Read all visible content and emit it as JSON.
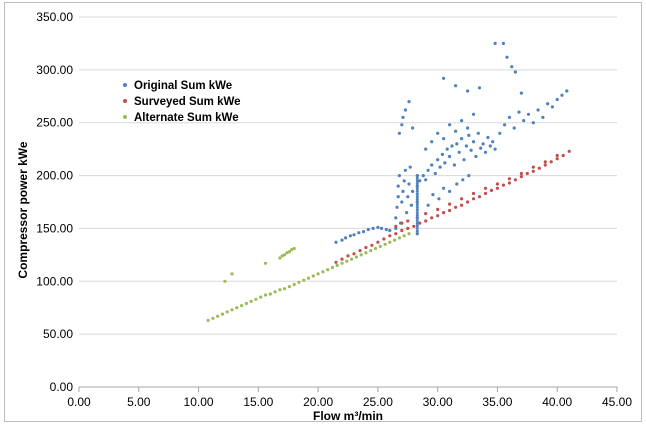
{
  "chart_data": {
    "type": "scatter",
    "title": "",
    "xlabel": "Flow m³/min",
    "ylabel": "Compressor power kWe",
    "xlim": [
      0,
      45
    ],
    "ylim": [
      0,
      350
    ],
    "x_ticks": [
      "0.00",
      "5.00",
      "10.00",
      "15.00",
      "20.00",
      "25.00",
      "30.00",
      "35.00",
      "40.00",
      "45.00"
    ],
    "y_ticks": [
      "0.00",
      "50.00",
      "100.00",
      "150.00",
      "200.00",
      "250.00",
      "300.00",
      "350.00"
    ],
    "grid": "horizontal",
    "legend_position": "top-left",
    "series": [
      {
        "name": "Original Sum kWe",
        "color": "#4f81bd",
        "points": [
          [
            21.5,
            137
          ],
          [
            22.0,
            139
          ],
          [
            22.3,
            141
          ],
          [
            22.7,
            143
          ],
          [
            23.0,
            144
          ],
          [
            23.4,
            146
          ],
          [
            23.8,
            147
          ],
          [
            24.2,
            149
          ],
          [
            24.6,
            150
          ],
          [
            25.0,
            151
          ],
          [
            25.3,
            150
          ],
          [
            25.7,
            149
          ],
          [
            26.0,
            148
          ],
          [
            26.5,
            150
          ],
          [
            26.5,
            160
          ],
          [
            26.6,
            170
          ],
          [
            26.7,
            180
          ],
          [
            26.7,
            190
          ],
          [
            26.8,
            200
          ],
          [
            26.9,
            155
          ],
          [
            27.0,
            175
          ],
          [
            27.1,
            185
          ],
          [
            27.2,
            195
          ],
          [
            27.3,
            205
          ],
          [
            27.4,
            165
          ],
          [
            27.5,
            180
          ],
          [
            27.6,
            192
          ],
          [
            27.7,
            208
          ],
          [
            27.8,
            172
          ],
          [
            27.9,
            185
          ],
          [
            26.8,
            240
          ],
          [
            27.0,
            248
          ],
          [
            27.3,
            262
          ],
          [
            27.1,
            255
          ],
          [
            27.6,
            270
          ],
          [
            27.9,
            245
          ],
          [
            28.3,
            145
          ],
          [
            28.3,
            160
          ],
          [
            28.3,
            175
          ],
          [
            28.3,
            190
          ],
          [
            28.3,
            200
          ],
          [
            28.5,
            195
          ],
          [
            28.8,
            200
          ],
          [
            29.0,
            196
          ],
          [
            29.2,
            205
          ],
          [
            29.5,
            210
          ],
          [
            29.8,
            202
          ],
          [
            30.0,
            215
          ],
          [
            30.2,
            208
          ],
          [
            30.4,
            220
          ],
          [
            30.6,
            212
          ],
          [
            30.8,
            225
          ],
          [
            31.0,
            218
          ],
          [
            31.2,
            228
          ],
          [
            31.4,
            210
          ],
          [
            31.6,
            230
          ],
          [
            31.8,
            222
          ],
          [
            32.0,
            235
          ],
          [
            32.2,
            215
          ],
          [
            32.4,
            228
          ],
          [
            32.6,
            238
          ],
          [
            32.8,
            224
          ],
          [
            33.0,
            232
          ],
          [
            33.2,
            218
          ],
          [
            33.4,
            240
          ],
          [
            33.6,
            226
          ],
          [
            33.8,
            230
          ],
          [
            34.0,
            222
          ],
          [
            34.2,
            236
          ],
          [
            34.4,
            228
          ],
          [
            34.6,
            232
          ],
          [
            34.8,
            225
          ],
          [
            29.0,
            225
          ],
          [
            29.5,
            232
          ],
          [
            30.0,
            240
          ],
          [
            30.5,
            235
          ],
          [
            31.0,
            248
          ],
          [
            31.5,
            242
          ],
          [
            32.0,
            252
          ],
          [
            32.5,
            245
          ],
          [
            33.0,
            258
          ],
          [
            29.2,
            172
          ],
          [
            29.6,
            182
          ],
          [
            30.1,
            178
          ],
          [
            30.5,
            188
          ],
          [
            31.0,
            185
          ],
          [
            31.6,
            192
          ],
          [
            32.1,
            196
          ],
          [
            32.6,
            200
          ],
          [
            35.2,
            240
          ],
          [
            35.6,
            248
          ],
          [
            36.0,
            255
          ],
          [
            36.4,
            245
          ],
          [
            36.8,
            260
          ],
          [
            37.2,
            252
          ],
          [
            37.6,
            258
          ],
          [
            38.0,
            250
          ],
          [
            38.4,
            262
          ],
          [
            38.8,
            255
          ],
          [
            39.2,
            268
          ],
          [
            39.6,
            265
          ],
          [
            40.0,
            272
          ],
          [
            40.4,
            276
          ],
          [
            40.8,
            280
          ],
          [
            30.5,
            292
          ],
          [
            31.5,
            285
          ],
          [
            32.5,
            280
          ],
          [
            33.5,
            283
          ],
          [
            34.8,
            325
          ],
          [
            35.5,
            325
          ],
          [
            35.8,
            312
          ],
          [
            36.2,
            303
          ],
          [
            36.5,
            298
          ],
          [
            37.0,
            278
          ]
        ]
      },
      {
        "name": "Surveyed Sum kWe",
        "color": "#c0504d",
        "points": [
          [
            21.5,
            118
          ],
          [
            22.0,
            121
          ],
          [
            22.5,
            124
          ],
          [
            23.0,
            126
          ],
          [
            23.5,
            129
          ],
          [
            24.0,
            132
          ],
          [
            24.5,
            134
          ],
          [
            25.0,
            137
          ],
          [
            25.5,
            140
          ],
          [
            26.0,
            143
          ],
          [
            26.5,
            145
          ],
          [
            27.0,
            148
          ],
          [
            27.5,
            150
          ],
          [
            28.0,
            152
          ],
          [
            28.5,
            155
          ],
          [
            29.0,
            157
          ],
          [
            29.5,
            160
          ],
          [
            30.0,
            162
          ],
          [
            30.5,
            165
          ],
          [
            31.0,
            167
          ],
          [
            31.5,
            170
          ],
          [
            32.0,
            172
          ],
          [
            32.5,
            175
          ],
          [
            33.0,
            178
          ],
          [
            33.5,
            180
          ],
          [
            34.0,
            183
          ],
          [
            34.5,
            186
          ],
          [
            35.0,
            188
          ],
          [
            35.5,
            191
          ],
          [
            36.0,
            193
          ],
          [
            36.5,
            196
          ],
          [
            37.0,
            199
          ],
          [
            37.5,
            202
          ],
          [
            38.0,
            204
          ],
          [
            38.5,
            207
          ],
          [
            39.0,
            210
          ],
          [
            39.5,
            213
          ],
          [
            40.0,
            216
          ],
          [
            40.5,
            219
          ],
          [
            41.0,
            223
          ],
          [
            26.5,
            152
          ],
          [
            27.0,
            155
          ],
          [
            27.5,
            157
          ],
          [
            29.0,
            164
          ],
          [
            30.0,
            168
          ],
          [
            31.0,
            173
          ],
          [
            32.0,
            178
          ],
          [
            33.0,
            183
          ],
          [
            34.0,
            188
          ],
          [
            35.0,
            192
          ],
          [
            36.0,
            197
          ],
          [
            37.0,
            202
          ],
          [
            38.0,
            208
          ],
          [
            39.0,
            213
          ],
          [
            40.0,
            219
          ]
        ]
      },
      {
        "name": "Alternate Sum kWe",
        "color": "#9bbb59",
        "points": [
          [
            10.8,
            63
          ],
          [
            11.2,
            65
          ],
          [
            11.6,
            67
          ],
          [
            12.0,
            69
          ],
          [
            12.4,
            71
          ],
          [
            12.8,
            73
          ],
          [
            13.2,
            75
          ],
          [
            13.6,
            77
          ],
          [
            14.0,
            79
          ],
          [
            14.4,
            81
          ],
          [
            14.8,
            83
          ],
          [
            15.2,
            85
          ],
          [
            15.6,
            87
          ],
          [
            16.0,
            88
          ],
          [
            16.4,
            90
          ],
          [
            16.8,
            92
          ],
          [
            17.2,
            93
          ],
          [
            17.6,
            95
          ],
          [
            18.0,
            97
          ],
          [
            18.4,
            99
          ],
          [
            18.8,
            101
          ],
          [
            19.2,
            103
          ],
          [
            19.6,
            105
          ],
          [
            20.0,
            107
          ],
          [
            20.4,
            109
          ],
          [
            20.8,
            111
          ],
          [
            21.2,
            113
          ],
          [
            21.6,
            115
          ],
          [
            22.0,
            117
          ],
          [
            22.4,
            119
          ],
          [
            22.8,
            121
          ],
          [
            23.2,
            123
          ],
          [
            23.6,
            125
          ],
          [
            24.0,
            127
          ],
          [
            24.4,
            129
          ],
          [
            24.8,
            131
          ],
          [
            25.2,
            133
          ],
          [
            25.6,
            135
          ],
          [
            26.0,
            137
          ],
          [
            26.4,
            139
          ],
          [
            26.8,
            141
          ],
          [
            27.2,
            143
          ],
          [
            27.6,
            145
          ],
          [
            16.8,
            122
          ],
          [
            17.0,
            124
          ],
          [
            17.2,
            125
          ],
          [
            17.4,
            127
          ],
          [
            17.6,
            128
          ],
          [
            17.8,
            130
          ],
          [
            18.0,
            131
          ],
          [
            12.2,
            100
          ],
          [
            12.8,
            107
          ],
          [
            15.6,
            117
          ]
        ]
      }
    ]
  }
}
